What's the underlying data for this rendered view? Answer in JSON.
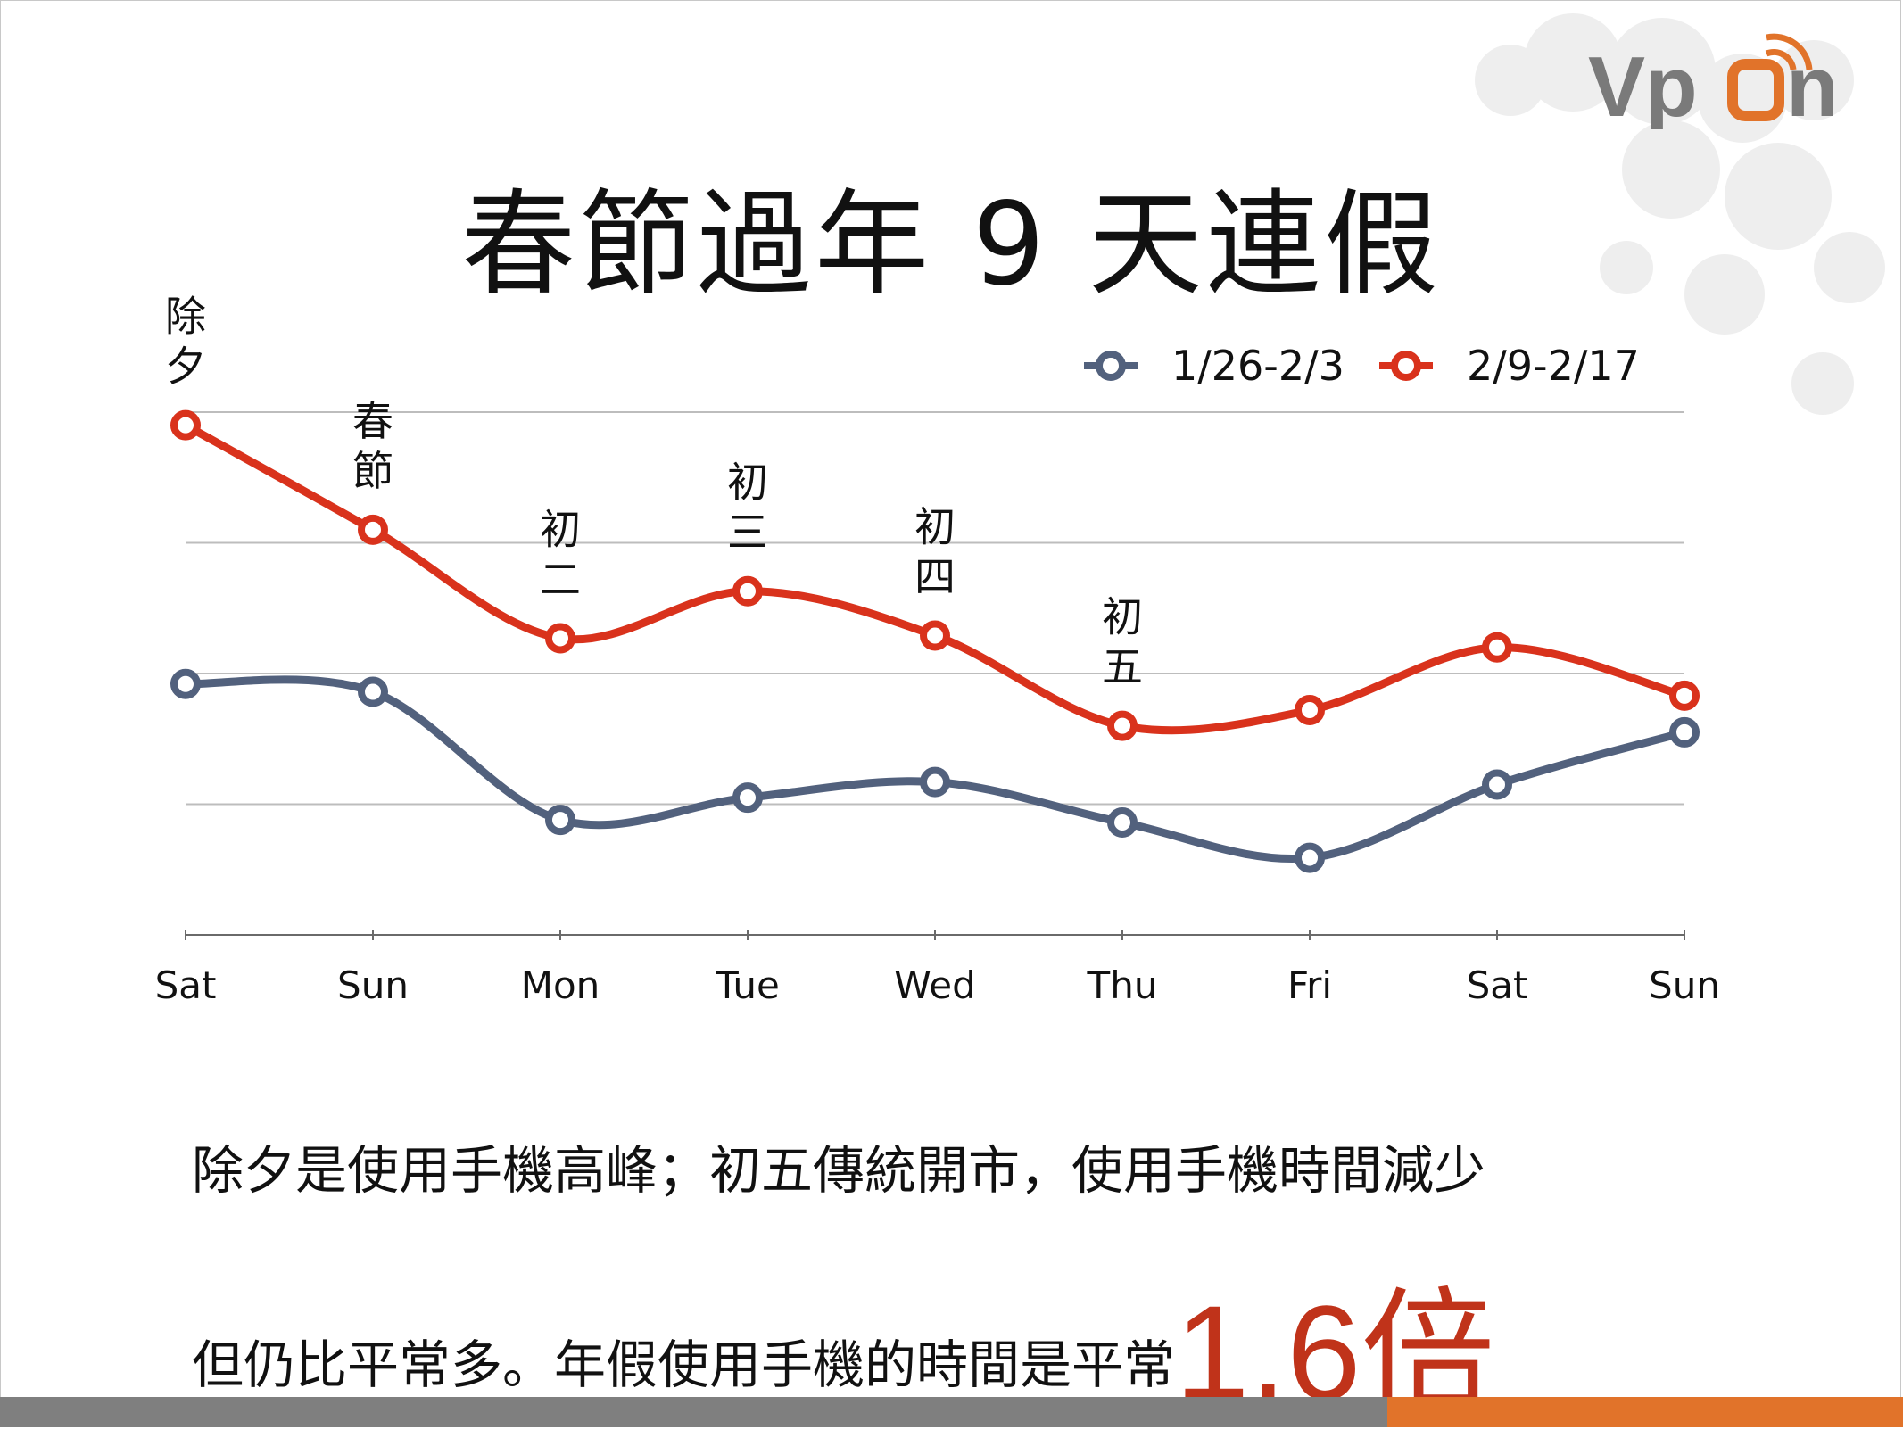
{
  "logo": {
    "text": "Vpon",
    "icon": "signal-icon"
  },
  "title": "春節過年 9 天連假",
  "caption": {
    "line1": "除夕是使用手機高峰；初五傳統開市，使用手機時間減少",
    "line2_prefix": "但仍比平常多。年假使用手機的時間是平常",
    "highlight": "1.6倍"
  },
  "colors": {
    "series1": "#52617d",
    "series2": "#d9321c",
    "highlight": "#c0331a",
    "footer": "#7f7f7f",
    "footer_accent": "#e1732a"
  },
  "chart_data": {
    "type": "line",
    "title": "",
    "xlabel": "",
    "ylabel": "",
    "categories": [
      "Sat",
      "Sun",
      "Mon",
      "Tue",
      "Wed",
      "Thu",
      "Fri",
      "Sat",
      "Sun"
    ],
    "ylim": [
      0,
      4
    ],
    "grid": true,
    "legend_position": "top-right",
    "series": [
      {
        "name": "1/26-2/3",
        "color": "#52617d",
        "values": [
          1.92,
          1.86,
          0.88,
          1.05,
          1.17,
          0.86,
          0.59,
          1.15,
          1.55
        ]
      },
      {
        "name": "2/9-2/17",
        "color": "#d9321c",
        "values": [
          3.9,
          3.1,
          2.27,
          2.63,
          2.29,
          1.6,
          1.72,
          2.2,
          1.83
        ]
      }
    ],
    "annotations": [
      {
        "index": 0,
        "text": [
          "除",
          "夕"
        ]
      },
      {
        "index": 1,
        "text": [
          "春",
          "節"
        ]
      },
      {
        "index": 2,
        "text": [
          "初",
          "二"
        ]
      },
      {
        "index": 3,
        "text": [
          "初",
          "三"
        ]
      },
      {
        "index": 4,
        "text": [
          "初",
          "四"
        ]
      },
      {
        "index": 5,
        "text": [
          "初",
          "五"
        ]
      }
    ]
  }
}
